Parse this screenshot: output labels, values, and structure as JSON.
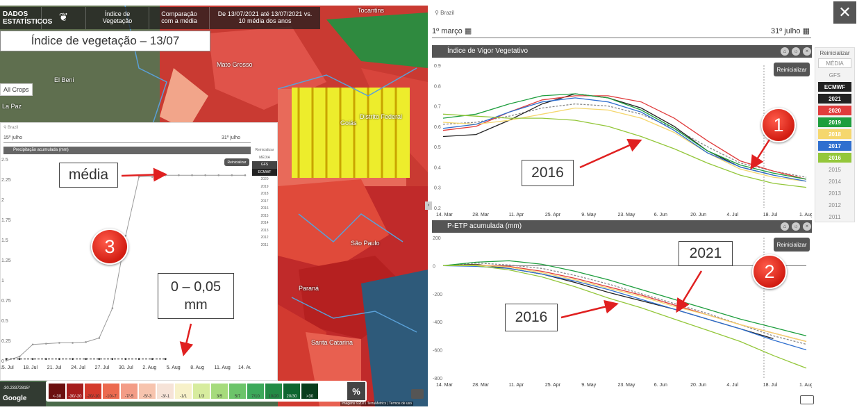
{
  "map": {
    "toolbar": {
      "brand": "DADOS ESTATÍSTICOS",
      "index": "Índice de Vegetação",
      "comparison": "Comparação com a média",
      "period": "De 13/07/2021 até 13/07/2021 vs. 10 média dos anos"
    },
    "title_box": "Índice de vegetação – 13/07",
    "all_crops": "All Crops",
    "place_labels": [
      "Mato Grosso",
      "El Beni",
      "La Paz",
      "Goiás",
      "Distrito Federal",
      "São Paulo",
      "Paraná",
      "Santa Catarina",
      "Tocantins"
    ],
    "coords": "-30.23372815°",
    "attribution": "Imagens ©2021 TerraMetrics | Termos de uso",
    "google": "Google",
    "percent_button": "%",
    "legend": [
      {
        "label": "<-30",
        "color": "#6b0f0f"
      },
      {
        "label": "-30/-20",
        "color": "#a51d1d"
      },
      {
        "label": "-20/-10",
        "color": "#d43a2c"
      },
      {
        "label": "-10/-7",
        "color": "#ec6a4f"
      },
      {
        "label": "-7/-5",
        "color": "#f39c86"
      },
      {
        "label": "-5/-3",
        "color": "#f7c4ae"
      },
      {
        "label": "-3/-1",
        "color": "#f6e3d8"
      },
      {
        "label": "-1/1",
        "color": "#f7f1c9"
      },
      {
        "label": "1/3",
        "color": "#d7ec9e"
      },
      {
        "label": "3/5",
        "color": "#a6db7c"
      },
      {
        "label": "5/7",
        "color": "#6cc46a"
      },
      {
        "label": "7/10",
        "color": "#3ca95a"
      },
      {
        "label": "10/20",
        "color": "#238b45"
      },
      {
        "label": "20/30",
        "color": "#0d6630"
      },
      {
        "label": ">30",
        "color": "#083d1d"
      }
    ]
  },
  "mini": {
    "location": "Brazil",
    "date_start": "15º julho",
    "date_end": "31º julho",
    "title": "Precipitação acumulada (mm)",
    "reset": "Reinicializar",
    "legend": [
      "Reinicializar",
      "MÉDIA",
      "GFS",
      "ECMWF",
      "2020",
      "2019",
      "2018",
      "2017",
      "2016",
      "2015",
      "2014",
      "2013",
      "2012",
      "2011"
    ],
    "yticks": [
      "2.5",
      "2.25",
      "2",
      "1.75",
      "1.5",
      "1.25",
      "1",
      "0.75",
      "0.5",
      "0.25",
      "0"
    ],
    "xticks": [
      "15. Jul",
      "18. Jul",
      "21. Jul",
      "24. Jul",
      "27. Jul",
      "30. Jul",
      "2. Aug",
      "5. Aug",
      "8. Aug",
      "11. Aug",
      "14. Aug"
    ]
  },
  "annotations": {
    "media": "média",
    "range": "0 – 0,05 mm",
    "n1": "1",
    "n2": "2",
    "n3": "3",
    "y2016a": "2016",
    "y2016b": "2016",
    "y2021": "2021"
  },
  "right": {
    "location": "Brazil",
    "date_start": "1º março",
    "date_end": "31º julho",
    "close": "✕",
    "chart1_title": "Índice de Vigor Vegetativo",
    "chart2_title": "P-ETP acumulada (mm)",
    "reset": "Reinicializar",
    "legend_reset": "Reinicializar",
    "legend": [
      "MÉDIA",
      "GFS",
      "ECMWF",
      "2021",
      "2020",
      "2019",
      "2018",
      "2017",
      "2016",
      "2015",
      "2014",
      "2013",
      "2012",
      "2011"
    ],
    "legend_colors": {
      "ECMWF": "#222222",
      "2021": "#222222",
      "2020": "#e03c3c",
      "2019": "#1e9e3e",
      "2018": "#f5d76e",
      "2017": "#2f6fcf",
      "2016": "#94c73b"
    },
    "xticks": [
      "14. Mar",
      "28. Mar",
      "11. Apr",
      "25. Apr",
      "9. May",
      "23. May",
      "6. Jun",
      "20. Jun",
      "4. Jul",
      "18. Jul",
      "1. Aug"
    ],
    "y1ticks": [
      "0.9",
      "0.8",
      "0.7",
      "0.6",
      "0.5",
      "0.4",
      "0.3",
      "0.2"
    ],
    "y2ticks": [
      "200",
      "0",
      "-200",
      "-400",
      "-600",
      "-800"
    ]
  },
  "chart_data": [
    {
      "type": "line",
      "title": "Índice de Vigor Vegetativo",
      "xlabel": "",
      "ylabel": "",
      "ylim": [
        0.2,
        0.9
      ],
      "x": [
        0,
        2,
        4,
        6,
        8,
        10,
        12,
        14,
        16,
        18,
        20,
        22
      ],
      "series": [
        {
          "name": "MÉDIA",
          "color": "#888888",
          "dashed": true,
          "values": [
            0.61,
            0.62,
            0.65,
            0.69,
            0.71,
            0.7,
            0.66,
            0.59,
            0.5,
            0.42,
            0.38,
            0.35
          ]
        },
        {
          "name": "2021",
          "color": "#222222",
          "values": [
            0.55,
            0.56,
            0.63,
            0.71,
            0.76,
            0.74,
            0.69,
            0.6,
            0.48,
            0.4,
            0.36,
            null
          ]
        },
        {
          "name": "2020",
          "color": "#e03c3c",
          "values": [
            0.58,
            0.6,
            0.67,
            0.73,
            0.75,
            0.75,
            0.72,
            0.64,
            0.53,
            0.43,
            0.38,
            0.34
          ]
        },
        {
          "name": "2019",
          "color": "#1e9e3e",
          "values": [
            0.64,
            0.66,
            0.71,
            0.75,
            0.76,
            0.74,
            0.68,
            0.59,
            0.48,
            0.41,
            0.37,
            0.34
          ]
        },
        {
          "name": "2018",
          "color": "#f5d76e",
          "values": [
            0.62,
            0.61,
            0.63,
            0.66,
            0.69,
            0.68,
            0.64,
            0.57,
            0.47,
            0.39,
            0.35,
            0.33
          ]
        },
        {
          "name": "2017",
          "color": "#2f6fcf",
          "values": [
            0.59,
            0.61,
            0.67,
            0.72,
            0.74,
            0.72,
            0.67,
            0.58,
            0.47,
            0.4,
            0.36,
            0.33
          ]
        },
        {
          "name": "2016",
          "color": "#94c73b",
          "values": [
            0.66,
            0.65,
            0.64,
            0.64,
            0.63,
            0.6,
            0.55,
            0.49,
            0.42,
            0.36,
            0.32,
            0.3
          ]
        }
      ]
    },
    {
      "type": "line",
      "title": "P-ETP acumulada (mm)",
      "xlabel": "",
      "ylabel": "",
      "ylim": [
        -800,
        200
      ],
      "x": [
        0,
        2,
        4,
        6,
        8,
        10,
        12,
        14,
        16,
        18,
        20,
        22
      ],
      "series": [
        {
          "name": "MÉDIA",
          "color": "#888888",
          "dashed": true,
          "values": [
            0,
            20,
            5,
            -20,
            -70,
            -130,
            -200,
            -270,
            -340,
            -420,
            -500,
            -560
          ]
        },
        {
          "name": "2021",
          "color": "#222222",
          "values": [
            0,
            10,
            -20,
            -60,
            -120,
            -190,
            -250,
            -310,
            -380,
            -450,
            -520,
            null
          ]
        },
        {
          "name": "2020",
          "color": "#e03c3c",
          "values": [
            0,
            5,
            -5,
            -40,
            -90,
            -150,
            -210,
            -280,
            -350,
            -420,
            -480,
            -540
          ]
        },
        {
          "name": "2019",
          "color": "#1e9e3e",
          "values": [
            0,
            25,
            35,
            10,
            -40,
            -100,
            -170,
            -240,
            -310,
            -380,
            -440,
            -500
          ]
        },
        {
          "name": "2018",
          "color": "#f5d76e",
          "values": [
            0,
            5,
            -10,
            -50,
            -100,
            -160,
            -220,
            -290,
            -350,
            -420,
            -480,
            -540
          ]
        },
        {
          "name": "2017",
          "color": "#2f6fcf",
          "values": [
            0,
            -5,
            -20,
            -60,
            -110,
            -170,
            -240,
            -310,
            -380,
            -450,
            -530,
            -600
          ]
        },
        {
          "name": "2016",
          "color": "#94c73b",
          "values": [
            0,
            0,
            -30,
            -80,
            -150,
            -230,
            -300,
            -380,
            -460,
            -540,
            -640,
            -730
          ]
        }
      ]
    },
    {
      "type": "line",
      "title": "Precipitação acumulada (mm)",
      "xlabel": "",
      "ylabel": "",
      "ylim": [
        0,
        2.5
      ],
      "x": [
        0,
        1,
        2,
        3,
        4,
        5,
        6,
        7,
        8,
        9,
        10,
        11,
        12,
        13,
        14,
        15,
        16,
        17,
        18
      ],
      "series": [
        {
          "name": "MÉDIA",
          "color": "#999999",
          "values": [
            0,
            0.05,
            0.2,
            0.21,
            0.22,
            0.22,
            0.23,
            0.28,
            0.65,
            1.55,
            2.28,
            2.28,
            2.3,
            2.3,
            2.3,
            2.3,
            2.3,
            2.3,
            2.3
          ]
        },
        {
          "name": "2021",
          "color": "#222222",
          "dashed": true,
          "values": [
            0.02,
            0.02,
            0.02,
            0.02,
            0.02,
            0.02,
            0.02,
            0.02,
            0.02,
            0.02,
            0.02,
            0.02,
            0.02,
            null,
            null,
            null,
            null,
            null,
            null
          ]
        }
      ]
    }
  ]
}
